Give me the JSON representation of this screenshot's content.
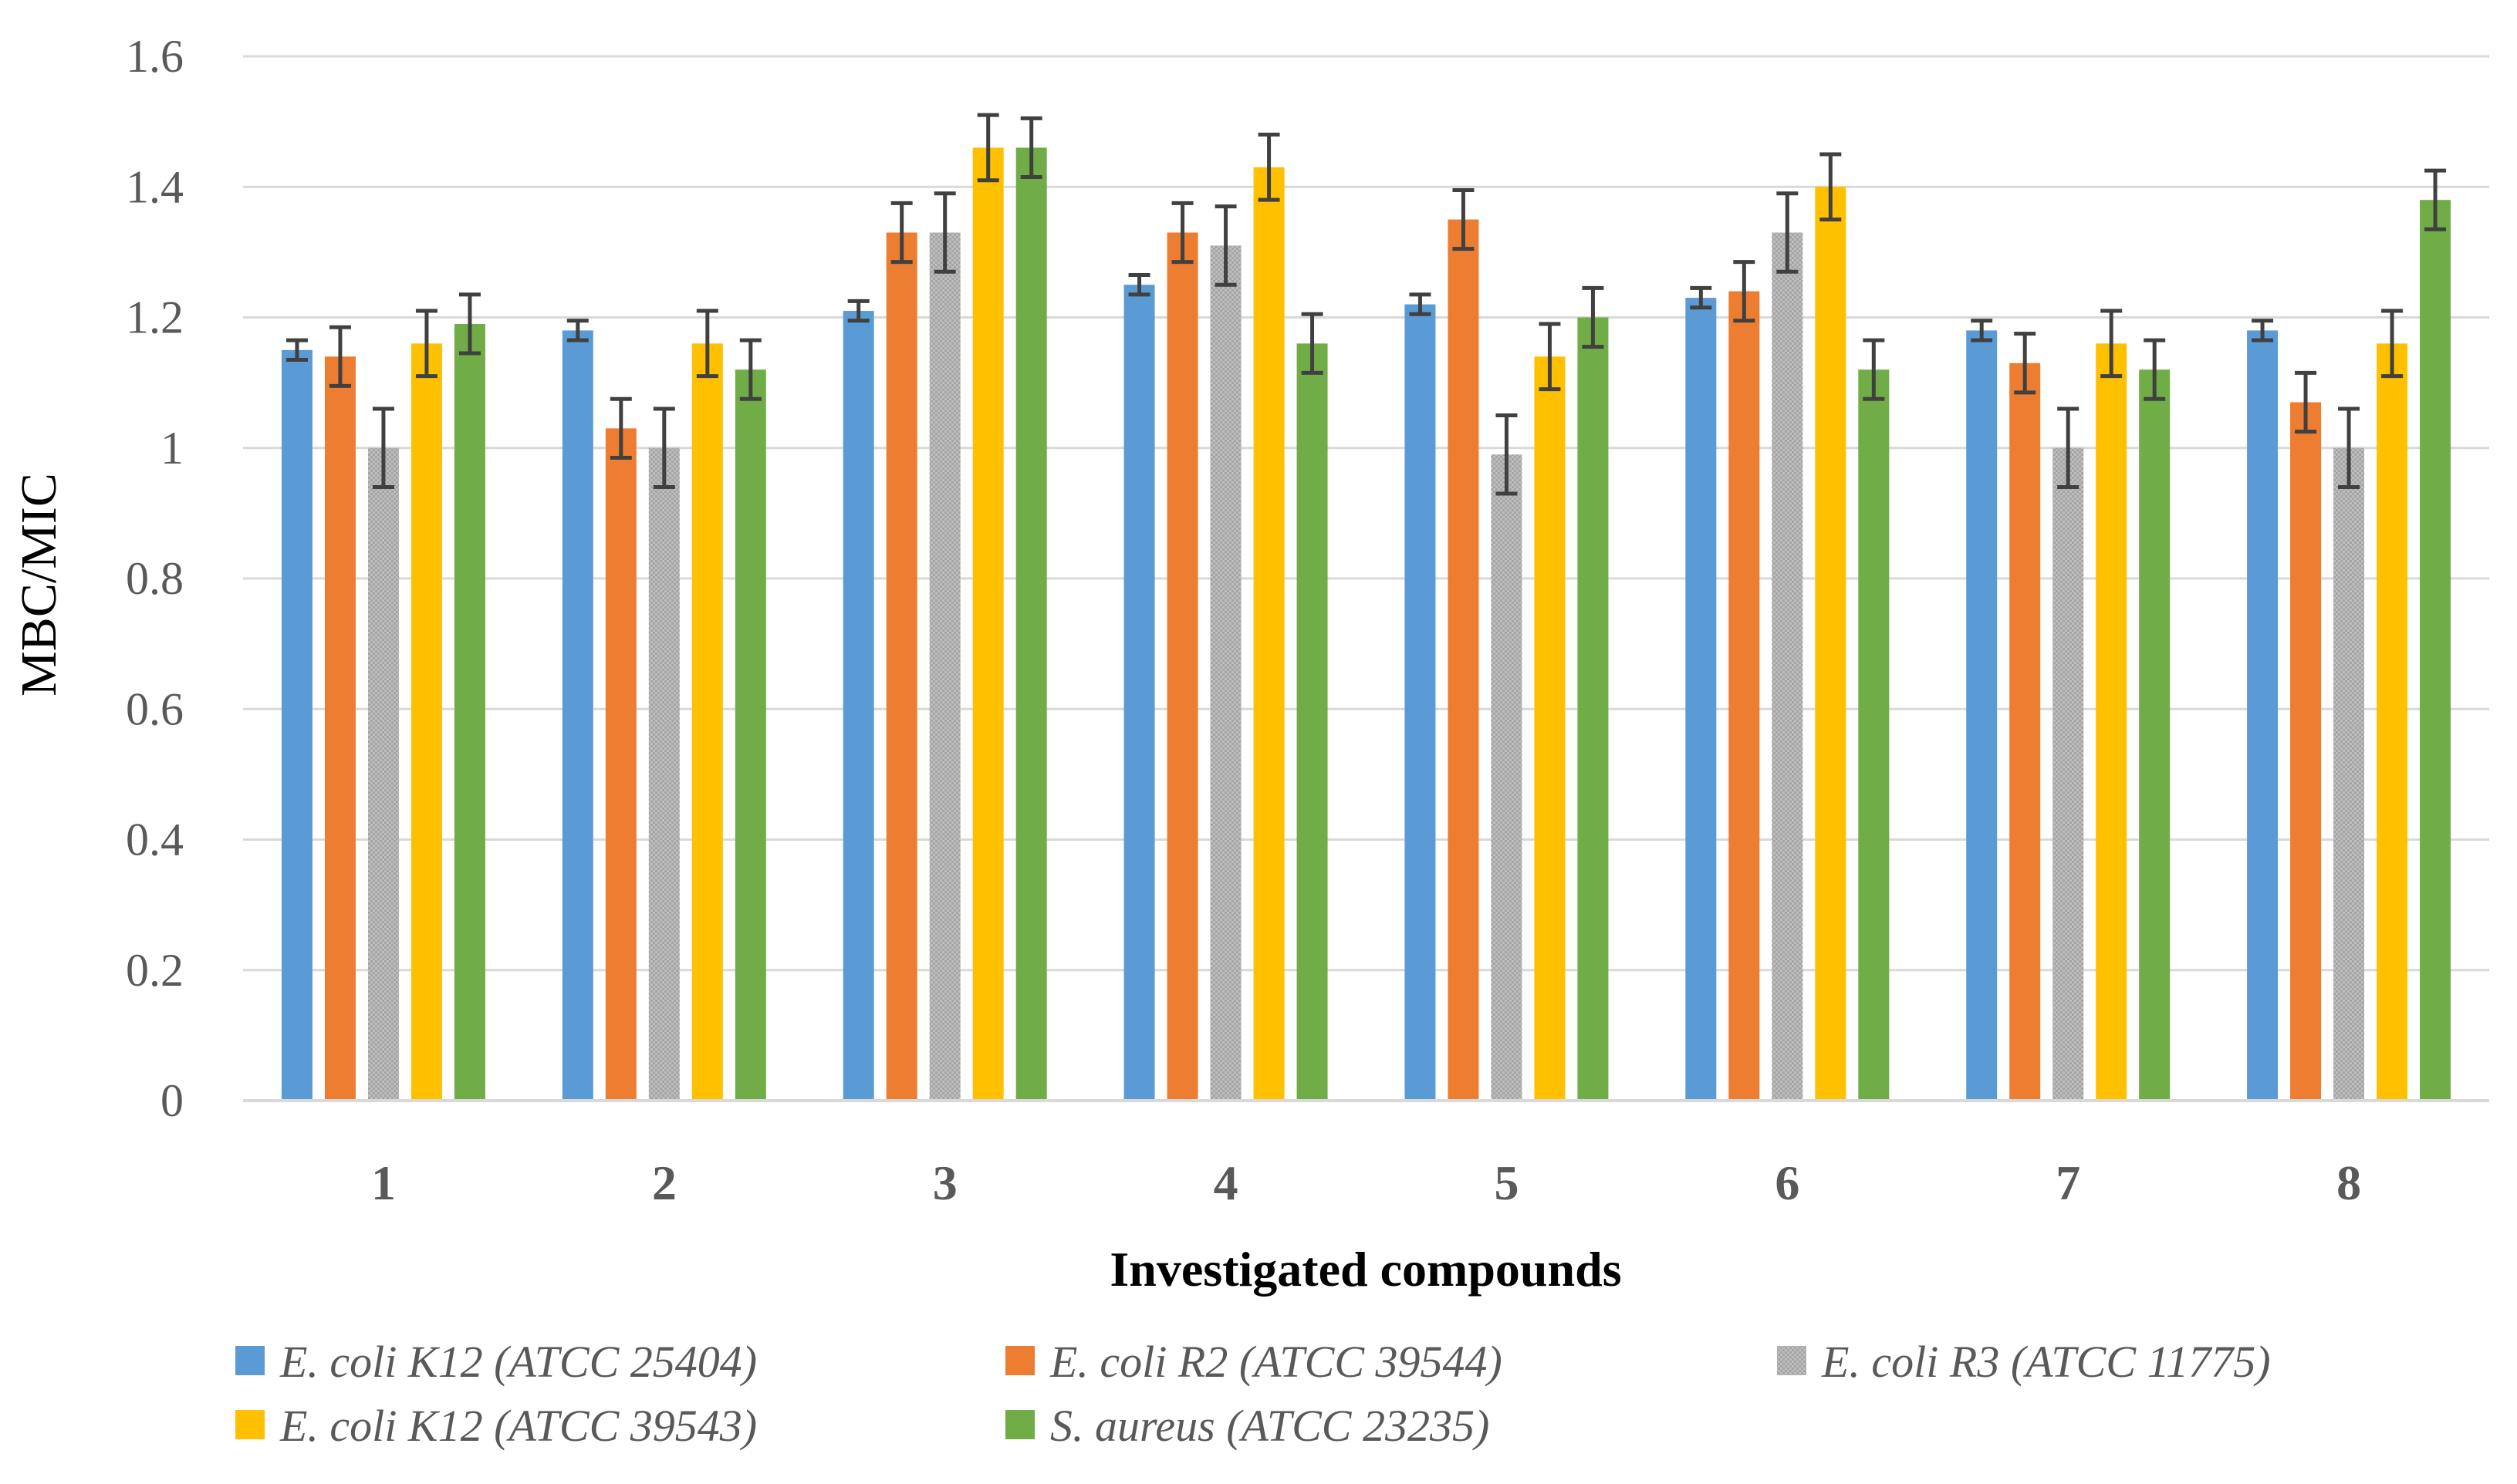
{
  "chart_data": {
    "type": "bar",
    "title": "",
    "xlabel": "Investigated compounds",
    "ylabel": "MBC/MIC",
    "ylim": [
      0,
      1.6
    ],
    "yticks": [
      0,
      0.2,
      0.4,
      0.6,
      0.8,
      1,
      1.2,
      1.4,
      1.6
    ],
    "ytick_labels": [
      "0",
      "0.2",
      "0.4",
      "0.6",
      "0.8",
      "1",
      "1.2",
      "1.4",
      "1.6"
    ],
    "grid": true,
    "legend_position": "bottom",
    "categories": [
      "1",
      "2",
      "3",
      "4",
      "5",
      "6",
      "7",
      "8"
    ],
    "series": [
      {
        "name": "E. coli K12 (ATCC 25404)",
        "color": "#5B9BD5",
        "values": [
          1.15,
          1.18,
          1.21,
          1.25,
          1.22,
          1.23,
          1.18,
          1.18
        ],
        "errors": [
          0.015,
          0.015,
          0.015,
          0.015,
          0.015,
          0.015,
          0.015,
          0.015
        ]
      },
      {
        "name": "E. coli R2 (ATCC 39544)",
        "color": "#ED7D31",
        "values": [
          1.14,
          1.03,
          1.33,
          1.33,
          1.35,
          1.24,
          1.13,
          1.07
        ],
        "errors": [
          0.045,
          0.045,
          0.045,
          0.045,
          0.045,
          0.045,
          0.045,
          0.045
        ]
      },
      {
        "name": "E. coli R3 (ATCC 11775)",
        "color": "#A5A5A5",
        "values": [
          1.0,
          1.0,
          1.33,
          1.31,
          0.99,
          1.33,
          1.0,
          1.0
        ],
        "errors": [
          0.06,
          0.06,
          0.06,
          0.06,
          0.06,
          0.06,
          0.06,
          0.06
        ]
      },
      {
        "name": "E. coli K12 (ATCC 39543)",
        "color": "#FFC000",
        "values": [
          1.16,
          1.16,
          1.46,
          1.43,
          1.14,
          1.4,
          1.16,
          1.16
        ],
        "errors": [
          0.05,
          0.05,
          0.05,
          0.05,
          0.05,
          0.05,
          0.05,
          0.05
        ]
      },
      {
        "name": "S. aureus (ATCC 23235)",
        "color": "#70AD47",
        "values": [
          1.19,
          1.12,
          1.46,
          1.16,
          1.2,
          1.12,
          1.12,
          1.38
        ],
        "errors": [
          0.045,
          0.045,
          0.045,
          0.045,
          0.045,
          0.045,
          0.045,
          0.045
        ]
      }
    ]
  }
}
